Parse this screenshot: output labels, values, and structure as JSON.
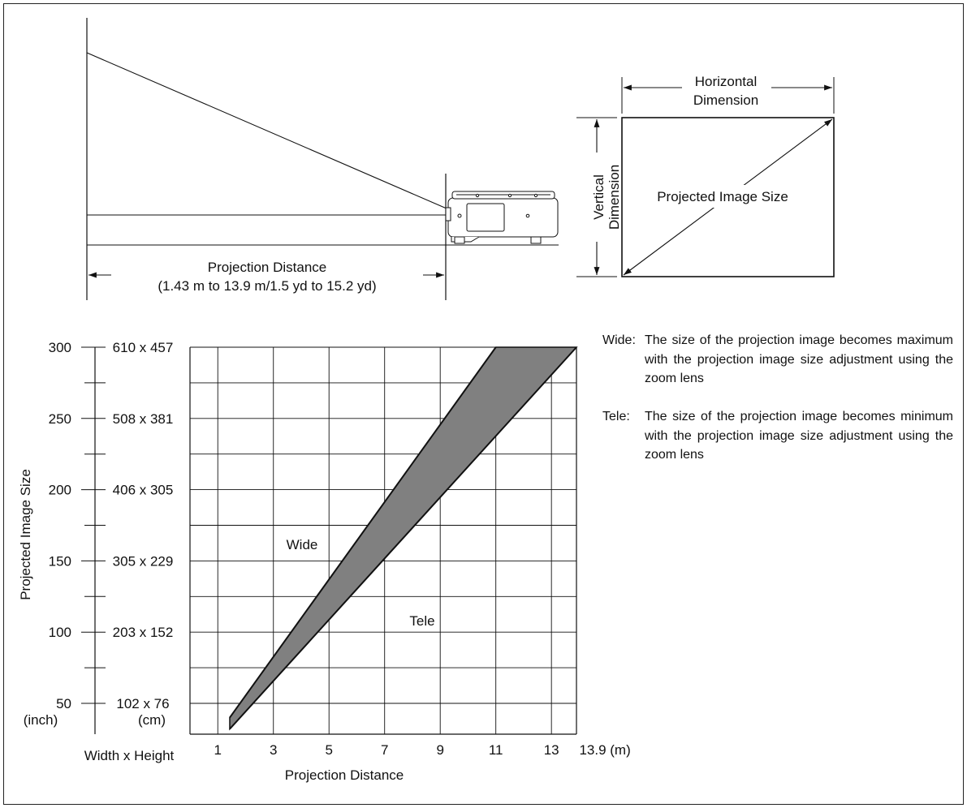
{
  "setup_diagram": {
    "projection_distance_label": "Projection Distance",
    "projection_distance_range": "(1.43 m to 13.9 m/1.5 yd to 15.2 yd)"
  },
  "screen_diagram": {
    "horizontal_label_line1": "Horizontal",
    "horizontal_label_line2": "Dimension",
    "vertical_label_line1": "Vertical",
    "vertical_label_line2": "Dimension",
    "diagonal_label": "Projected Image Size"
  },
  "chart_data": {
    "type": "area",
    "ylabel": "Projected Image Size",
    "xlabel": "Projection Distance",
    "x_unit": "(m)",
    "y_unit_inch": "(inch)",
    "y_unit_cm": "(cm)",
    "size_column_header": "Width x Height",
    "xlim": [
      0,
      13.9
    ],
    "ylim": [
      30,
      300
    ],
    "x_ticks": [
      "1",
      "3",
      "5",
      "7",
      "9",
      "11",
      "13",
      "13.9"
    ],
    "y_ticks": [
      {
        "inch": "300",
        "cm": "610 x 457",
        "value": 300
      },
      {
        "inch": "250",
        "cm": "508 x 381",
        "value": 250
      },
      {
        "inch": "200",
        "cm": "406 x 305",
        "value": 200
      },
      {
        "inch": "150",
        "cm": "305 x 229",
        "value": 150
      },
      {
        "inch": "100",
        "cm": "203 x 152",
        "value": 100
      },
      {
        "inch": "50",
        "cm": "102 x 76",
        "value": 50
      }
    ],
    "series": [
      {
        "name": "Wide",
        "points": [
          [
            1.43,
            40
          ],
          [
            11.0,
            300
          ]
        ]
      },
      {
        "name": "Tele",
        "points": [
          [
            1.43,
            32
          ],
          [
            13.9,
            300
          ]
        ]
      }
    ],
    "fill_color": "#808080"
  },
  "notes": [
    {
      "term": "Wide:",
      "text": "The size of the projection image becomes maximum with the projection image size adjustment using the zoom lens"
    },
    {
      "term": "Tele:",
      "text": "The size of the projection image becomes minimum with the projection image size adjustment using the zoom lens"
    }
  ]
}
